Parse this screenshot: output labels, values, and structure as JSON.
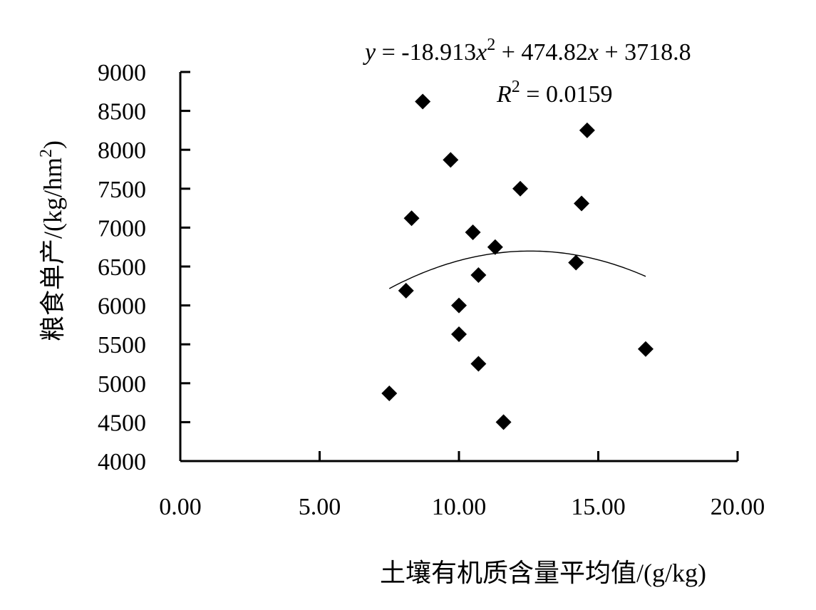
{
  "chart_data": {
    "type": "scatter",
    "xlabel": "土壤有机质含量平均值/(g/kg)",
    "ylabel_main": "粮食单产/(kg/hm",
    "ylabel_sup": "2",
    "ylabel_close": ")",
    "xlim": [
      0,
      20
    ],
    "ylim": [
      4000,
      9000
    ],
    "x_ticks": [
      "0.00",
      "5.00",
      "10.00",
      "15.00",
      "20.00"
    ],
    "y_ticks": [
      "4000",
      "4500",
      "5000",
      "5500",
      "6000",
      "6500",
      "7000",
      "7500",
      "8000",
      "8500",
      "9000"
    ],
    "points": [
      {
        "x": 7.5,
        "y": 4870
      },
      {
        "x": 8.1,
        "y": 6190
      },
      {
        "x": 8.3,
        "y": 7120
      },
      {
        "x": 8.7,
        "y": 8620
      },
      {
        "x": 9.7,
        "y": 7870
      },
      {
        "x": 10.0,
        "y": 6000
      },
      {
        "x": 10.0,
        "y": 5630
      },
      {
        "x": 10.5,
        "y": 6940
      },
      {
        "x": 10.7,
        "y": 6390
      },
      {
        "x": 10.7,
        "y": 5250
      },
      {
        "x": 11.3,
        "y": 6750
      },
      {
        "x": 11.6,
        "y": 4500
      },
      {
        "x": 12.2,
        "y": 7500
      },
      {
        "x": 14.2,
        "y": 6550
      },
      {
        "x": 14.4,
        "y": 7310
      },
      {
        "x": 14.6,
        "y": 8250
      },
      {
        "x": 16.7,
        "y": 5440
      }
    ],
    "trendline": {
      "type": "polynomial",
      "coefficients": {
        "a": -18.913,
        "b": 474.82,
        "c": 3718.8
      },
      "x_range": [
        7.5,
        16.7
      ]
    },
    "equation": {
      "y": "y",
      "eq1": " = -18.913",
      "x1": "x",
      "sup1": "2",
      "eq2": " + 474.82",
      "x2": "x",
      "eq3": " + 3718.8"
    },
    "r2": {
      "r": "R",
      "sup": "2",
      "rest": " = 0.0159"
    },
    "marker": "diamond",
    "color": "#000000",
    "grid": false,
    "legend": "none"
  }
}
